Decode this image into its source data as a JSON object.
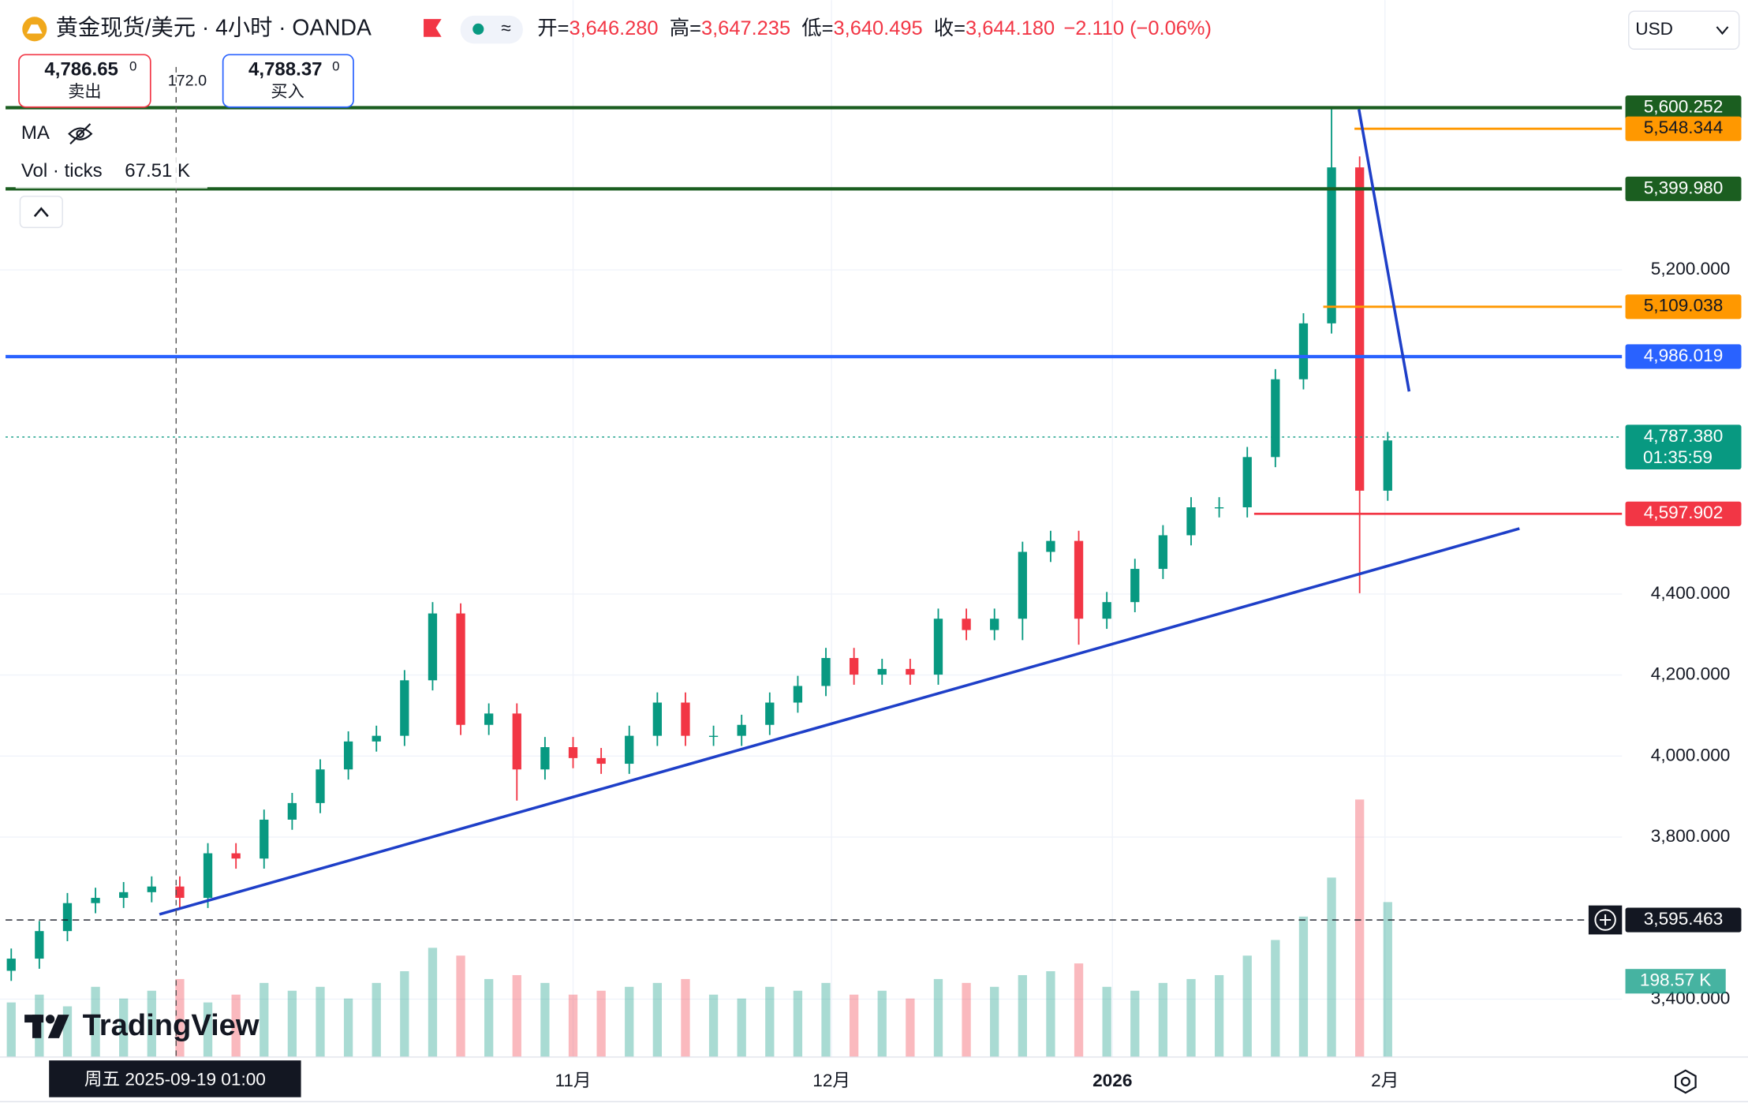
{
  "header": {
    "symbol_title": "黄金现货/美元 · 4小时 · OANDA",
    "ohlc": [
      {
        "label": "开=",
        "value": "3,646.280"
      },
      {
        "label": "高=",
        "value": "3,647.235"
      },
      {
        "label": "低=",
        "value": "3,640.495"
      },
      {
        "label": "收=",
        "value": "3,644.180"
      }
    ],
    "change": "−2.110 (−0.06%)",
    "currency": "USD"
  },
  "trade": {
    "sell_price": "4,786.65",
    "sell_price_sup": "0",
    "sell_label": "卖出",
    "spread": "172.0",
    "buy_price": "4,788.37",
    "buy_price_sup": "0",
    "buy_label": "买入"
  },
  "indicators": {
    "ma": "MA",
    "vol_title": "Vol · ticks",
    "vol_value": "67.51 K"
  },
  "crosshair": {
    "date_label": "周五 2025-09-19 01:00"
  },
  "logo": "TradingView",
  "chart_data": {
    "type": "candlestick",
    "up_color": "#089981",
    "down_color": "#f23645",
    "open": [
      3470,
      3500,
      3568,
      3637,
      3650,
      3664,
      3678,
      3650,
      3760,
      3747,
      3843,
      3884,
      3967,
      4036,
      4050,
      4187,
      4352,
      4077,
      4105,
      3967,
      4022,
      3995,
      3981,
      4050,
      4132,
      4050,
      4050,
      4077,
      4132,
      4173,
      4242,
      4201,
      4215,
      4201,
      4339,
      4311,
      4339,
      4504,
      4531,
      4339,
      4380,
      4462,
      4545,
      4614,
      4614,
      4738,
      4930,
      5068,
      5453,
      4655
    ],
    "high": [
      3525,
      3593,
      3662,
      3675,
      3689,
      3703,
      3703,
      3785,
      3785,
      3868,
      3909,
      3992,
      4061,
      4075,
      4212,
      4380,
      4377,
      4130,
      4130,
      4047,
      4047,
      4020,
      4075,
      4157,
      4157,
      4075,
      4102,
      4157,
      4198,
      4267,
      4267,
      4240,
      4240,
      4364,
      4364,
      4364,
      4529,
      4556,
      4556,
      4405,
      4487,
      4570,
      4639,
      4639,
      4763,
      4955,
      5093,
      5598,
      5480,
      4800
    ],
    "low": [
      3445,
      3475,
      3543,
      3612,
      3625,
      3639,
      3625,
      3625,
      3722,
      3722,
      3818,
      3859,
      3942,
      4011,
      4025,
      4162,
      4052,
      4052,
      3890,
      3942,
      3970,
      3956,
      3956,
      4025,
      4025,
      4025,
      4025,
      4052,
      4107,
      4148,
      4176,
      4176,
      4176,
      4176,
      4286,
      4286,
      4286,
      4479,
      4275,
      4314,
      4355,
      4437,
      4520,
      4589,
      4589,
      4713,
      4905,
      5043,
      4402,
      4630
    ],
    "close": [
      3500,
      3568,
      3637,
      3650,
      3664,
      3678,
      3650,
      3760,
      3747,
      3843,
      3884,
      3967,
      4036,
      4050,
      4187,
      4352,
      4077,
      4105,
      3967,
      4022,
      3995,
      3981,
      4050,
      4132,
      4050,
      4050,
      4077,
      4132,
      4173,
      4242,
      4201,
      4215,
      4201,
      4339,
      4311,
      4339,
      4504,
      4531,
      4339,
      4380,
      4462,
      4545,
      4614,
      4614,
      4738,
      4930,
      5068,
      5453,
      4655,
      4779
    ],
    "xlim": [
      -0.4,
      57.34
    ],
    "xticks": [
      {
        "value": 20.0,
        "label": "11月"
      },
      {
        "value": 29.2,
        "label": "12月"
      },
      {
        "value": 39.2,
        "label": "2026"
      },
      {
        "value": 48.9,
        "label": "2月"
      }
    ],
    "ylim": [
      3257,
      5866
    ],
    "yticks": [
      {
        "value": 3400,
        "label": "3,400.000"
      },
      {
        "value": 3800,
        "label": "3,800.000"
      },
      {
        "value": 4000,
        "label": "4,000.000"
      },
      {
        "value": 4200,
        "label": "4,200.000"
      },
      {
        "value": 4400,
        "label": "4,400.000"
      },
      {
        "value": 5200,
        "label": "5,200.000"
      }
    ],
    "grid": true,
    "price_lines": [
      {
        "value": 5600.252,
        "label": "5,600.252",
        "color": "#1b5e20",
        "style": "solid"
      },
      {
        "value": 5548.344,
        "label": "5,548.344",
        "color": "#ff9800",
        "style": "solid"
      },
      {
        "value": 5399.98,
        "label": "5,399.980",
        "color": "#1b5e20",
        "style": "solid"
      },
      {
        "value": 5109.038,
        "label": "5,109.038",
        "color": "#ff9800",
        "style": "solid"
      },
      {
        "value": 4986.019,
        "label": "4,986.019",
        "color": "#2962ff",
        "style": "solid"
      },
      {
        "value": 4787.38,
        "label": "4,787.380",
        "color": "#089981",
        "style": "dotted",
        "sublabel": "01:35:59"
      },
      {
        "value": 4597.902,
        "label": "4,597.902",
        "color": "#f23645",
        "style": "solid"
      },
      {
        "value": 3595.463,
        "label": "3,595.463",
        "color": "#131722",
        "style": "dashed"
      }
    ],
    "volume": {
      "values": [
        70,
        80,
        65,
        90,
        75,
        85,
        100,
        70,
        80,
        95,
        85,
        90,
        75,
        95,
        110,
        140,
        130,
        100,
        105,
        95,
        80,
        85,
        90,
        95,
        100,
        80,
        75,
        90,
        85,
        95,
        80,
        85,
        75,
        100,
        95,
        90,
        105,
        110,
        120,
        90,
        85,
        95,
        100,
        105,
        130,
        150,
        180,
        230,
        330,
        198.57
      ],
      "ylim": [
        0,
        340
      ],
      "last_value_label": "198.57 K"
    }
  }
}
